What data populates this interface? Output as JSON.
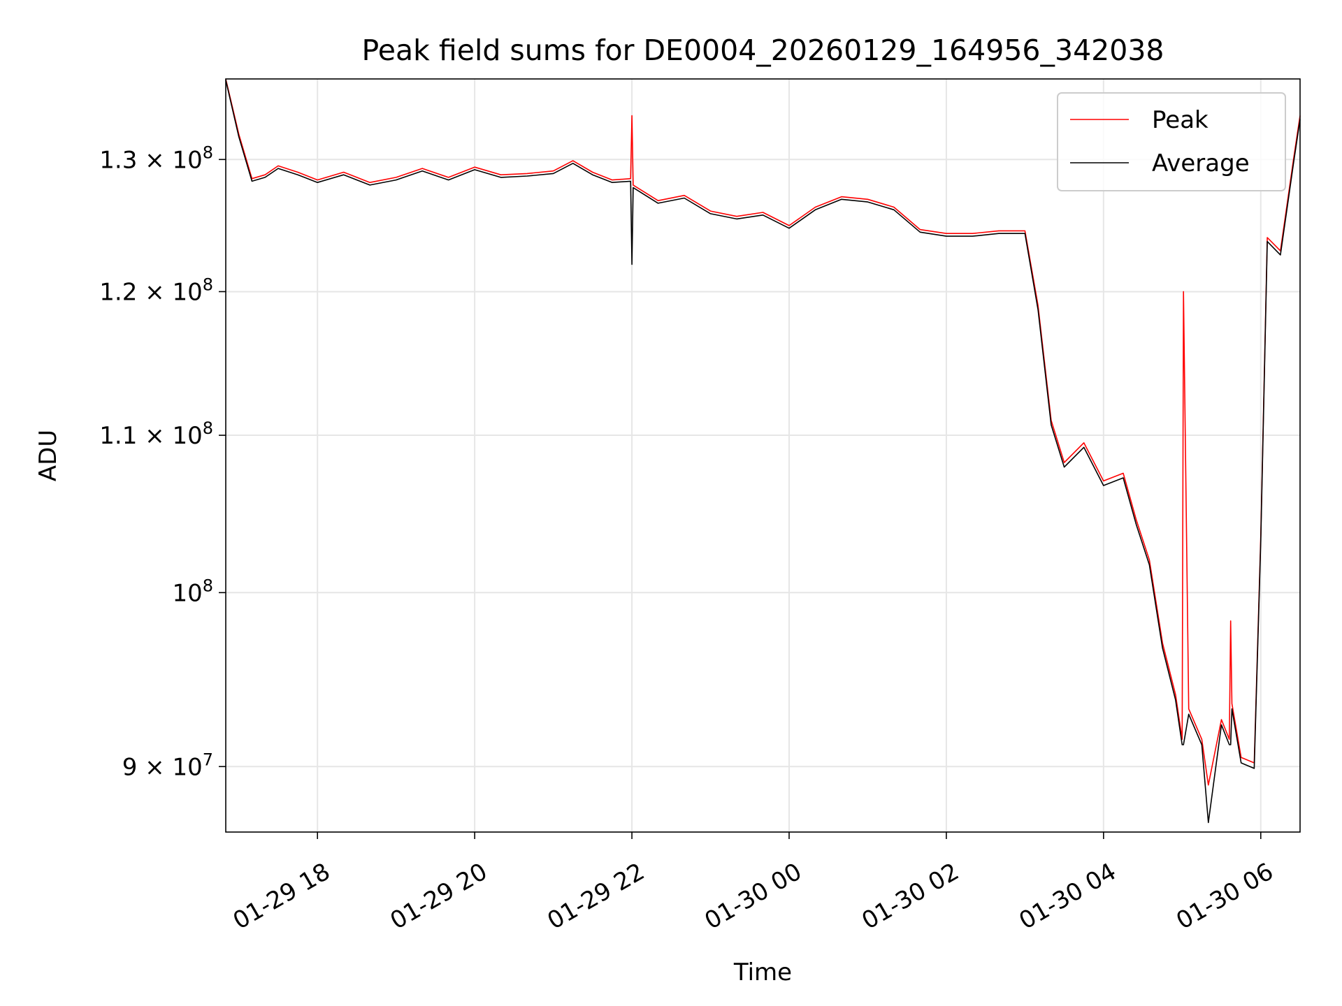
{
  "chart_data": {
    "type": "line",
    "title": "Peak field sums for DE0004_20260129_164956_342038",
    "xlabel": "Time",
    "ylabel": "ADU",
    "yscale": "log",
    "grid": true,
    "legend_position": "top-right",
    "xlim": [
      "2026-01-29 16:50",
      "2026-01-30 06:30"
    ],
    "ylim": [
      86500000,
      136500000
    ],
    "x_ticks": [
      {
        "t": "2026-01-29 18:00",
        "label": "01-29 18"
      },
      {
        "t": "2026-01-29 20:00",
        "label": "01-29 20"
      },
      {
        "t": "2026-01-29 22:00",
        "label": "01-29 22"
      },
      {
        "t": "2026-01-30 00:00",
        "label": "01-30 00"
      },
      {
        "t": "2026-01-30 02:00",
        "label": "01-30 02"
      },
      {
        "t": "2026-01-30 04:00",
        "label": "01-30 04"
      },
      {
        "t": "2026-01-30 06:00",
        "label": "01-30 06"
      }
    ],
    "y_ticks": [
      {
        "v": 90000000,
        "mantissa": "9",
        "exp": "7"
      },
      {
        "v": 100000000,
        "mantissa": "",
        "exp": "8"
      },
      {
        "v": 110000000,
        "mantissa": "1.1",
        "exp": "8"
      },
      {
        "v": 120000000,
        "mantissa": "1.2",
        "exp": "8"
      },
      {
        "v": 130000000,
        "mantissa": "1.3",
        "exp": "8"
      }
    ],
    "series": [
      {
        "name": "Peak",
        "color": "#ff0000",
        "x": [
          "2026-01-29 16:50",
          "2026-01-29 17:00",
          "2026-01-29 17:10",
          "2026-01-29 17:20",
          "2026-01-29 17:30",
          "2026-01-29 17:45",
          "2026-01-29 18:00",
          "2026-01-29 18:20",
          "2026-01-29 18:40",
          "2026-01-29 19:00",
          "2026-01-29 19:20",
          "2026-01-29 19:40",
          "2026-01-29 20:00",
          "2026-01-29 20:20",
          "2026-01-29 20:40",
          "2026-01-29 21:00",
          "2026-01-29 21:15",
          "2026-01-29 21:30",
          "2026-01-29 21:45",
          "2026-01-29 21:59",
          "2026-01-29 22:00",
          "2026-01-29 22:01",
          "2026-01-29 22:20",
          "2026-01-29 22:40",
          "2026-01-29 23:00",
          "2026-01-29 23:20",
          "2026-01-29 23:40",
          "2026-01-30 00:00",
          "2026-01-30 00:20",
          "2026-01-30 00:40",
          "2026-01-30 01:00",
          "2026-01-30 01:20",
          "2026-01-30 01:40",
          "2026-01-30 02:00",
          "2026-01-30 02:20",
          "2026-01-30 02:40",
          "2026-01-30 03:00",
          "2026-01-30 03:10",
          "2026-01-30 03:20",
          "2026-01-30 03:30",
          "2026-01-30 03:45",
          "2026-01-30 04:00",
          "2026-01-30 04:15",
          "2026-01-30 04:25",
          "2026-01-30 04:35",
          "2026-01-30 04:45",
          "2026-01-30 04:55",
          "2026-01-30 05:00",
          "2026-01-30 05:01",
          "2026-01-30 05:05",
          "2026-01-30 05:15",
          "2026-01-30 05:20",
          "2026-01-30 05:30",
          "2026-01-30 05:36",
          "2026-01-30 05:37",
          "2026-01-30 05:38",
          "2026-01-30 05:45",
          "2026-01-30 05:55",
          "2026-01-30 06:00",
          "2026-01-30 06:05",
          "2026-01-30 06:15",
          "2026-01-30 06:25",
          "2026-01-30 06:30"
        ],
        "y": [
          136500000,
          132000000,
          128500000,
          128800000,
          129500000,
          129000000,
          128400000,
          129000000,
          128200000,
          128600000,
          129300000,
          128600000,
          129400000,
          128800000,
          128900000,
          129100000,
          129900000,
          129000000,
          128400000,
          128500000,
          133500000,
          128000000,
          126800000,
          127200000,
          126000000,
          125600000,
          125900000,
          124900000,
          126300000,
          127100000,
          126900000,
          126300000,
          124600000,
          124300000,
          124300000,
          124500000,
          124500000,
          119000000,
          111000000,
          108200000,
          109500000,
          107000000,
          107500000,
          104500000,
          102000000,
          97000000,
          94000000,
          91500000,
          120000000,
          93200000,
          91500000,
          89000000,
          92600000,
          91500000,
          98300000,
          93500000,
          90500000,
          90200000,
          103500000,
          124000000,
          123000000,
          130000000,
          133500000
        ]
      },
      {
        "name": "Average",
        "color": "#000000",
        "x": [
          "2026-01-29 16:50",
          "2026-01-29 17:00",
          "2026-01-29 17:10",
          "2026-01-29 17:20",
          "2026-01-29 17:30",
          "2026-01-29 17:45",
          "2026-01-29 18:00",
          "2026-01-29 18:20",
          "2026-01-29 18:40",
          "2026-01-29 19:00",
          "2026-01-29 19:20",
          "2026-01-29 19:40",
          "2026-01-29 20:00",
          "2026-01-29 20:20",
          "2026-01-29 20:40",
          "2026-01-29 21:00",
          "2026-01-29 21:15",
          "2026-01-29 21:30",
          "2026-01-29 21:45",
          "2026-01-29 21:59",
          "2026-01-29 22:00",
          "2026-01-29 22:01",
          "2026-01-29 22:20",
          "2026-01-29 22:40",
          "2026-01-29 23:00",
          "2026-01-29 23:20",
          "2026-01-29 23:40",
          "2026-01-30 00:00",
          "2026-01-30 00:20",
          "2026-01-30 00:40",
          "2026-01-30 01:00",
          "2026-01-30 01:20",
          "2026-01-30 01:40",
          "2026-01-30 02:00",
          "2026-01-30 02:20",
          "2026-01-30 02:40",
          "2026-01-30 03:00",
          "2026-01-30 03:10",
          "2026-01-30 03:20",
          "2026-01-30 03:30",
          "2026-01-30 03:45",
          "2026-01-30 04:00",
          "2026-01-30 04:15",
          "2026-01-30 04:25",
          "2026-01-30 04:35",
          "2026-01-30 04:45",
          "2026-01-30 04:55",
          "2026-01-30 05:00",
          "2026-01-30 05:01",
          "2026-01-30 05:05",
          "2026-01-30 05:15",
          "2026-01-30 05:20",
          "2026-01-30 05:30",
          "2026-01-30 05:36",
          "2026-01-30 05:37",
          "2026-01-30 05:38",
          "2026-01-30 05:45",
          "2026-01-30 05:55",
          "2026-01-30 06:00",
          "2026-01-30 06:05",
          "2026-01-30 06:15",
          "2026-01-30 06:25",
          "2026-01-30 06:30"
        ],
        "y": [
          136400000,
          131800000,
          128300000,
          128600000,
          129300000,
          128800000,
          128200000,
          128800000,
          128000000,
          128400000,
          129100000,
          128400000,
          129200000,
          128600000,
          128700000,
          128900000,
          129700000,
          128800000,
          128200000,
          128300000,
          122000000,
          127800000,
          126600000,
          127000000,
          125800000,
          125400000,
          125700000,
          124700000,
          126100000,
          126900000,
          126700000,
          126100000,
          124400000,
          124100000,
          124100000,
          124300000,
          124300000,
          118700000,
          110700000,
          107900000,
          109200000,
          106700000,
          107200000,
          104200000,
          101700000,
          96700000,
          93700000,
          91200000,
          91200000,
          92900000,
          91200000,
          87000000,
          92300000,
          91200000,
          91200000,
          93200000,
          90200000,
          89900000,
          103200000,
          123700000,
          122700000,
          129700000,
          133200000
        ]
      }
    ]
  }
}
